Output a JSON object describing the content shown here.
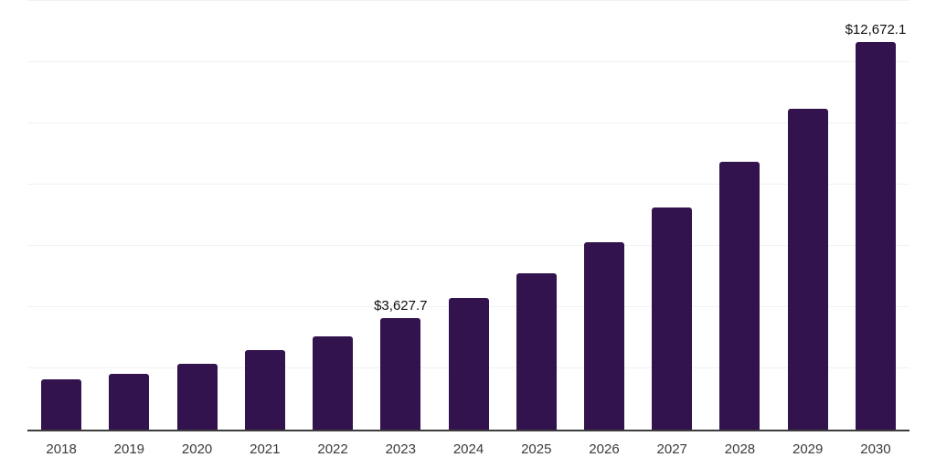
{
  "chart_data": {
    "type": "bar",
    "title": "",
    "xlabel": "",
    "ylabel": "",
    "categories": [
      "2018",
      "2019",
      "2020",
      "2021",
      "2022",
      "2023",
      "2024",
      "2025",
      "2026",
      "2027",
      "2028",
      "2029",
      "2030"
    ],
    "values": [
      1640,
      1820,
      2140,
      2590,
      3055,
      3627.7,
      4300,
      5105,
      6120,
      7250,
      8740,
      10480,
      12672.1
    ],
    "value_labels": {
      "2023": "$3,627.7",
      "2030": "$12,672.1"
    },
    "labeled_values": {
      "2023": 3627.7,
      "2030": 12672.1
    },
    "unlabeled_values_note": "values without on-chart labels are estimated from gridlines",
    "ylim": [
      0,
      14000
    ],
    "gridline_interval": 2000,
    "grid": "horizontal",
    "legend": null,
    "colors": {
      "bar": "#33134d",
      "gridline": "#f1f1f1",
      "axis": "#3d3d3d",
      "tick_label": "#3a3a3a",
      "annotation": "#0f0f0f",
      "background": "#ffffff"
    }
  }
}
